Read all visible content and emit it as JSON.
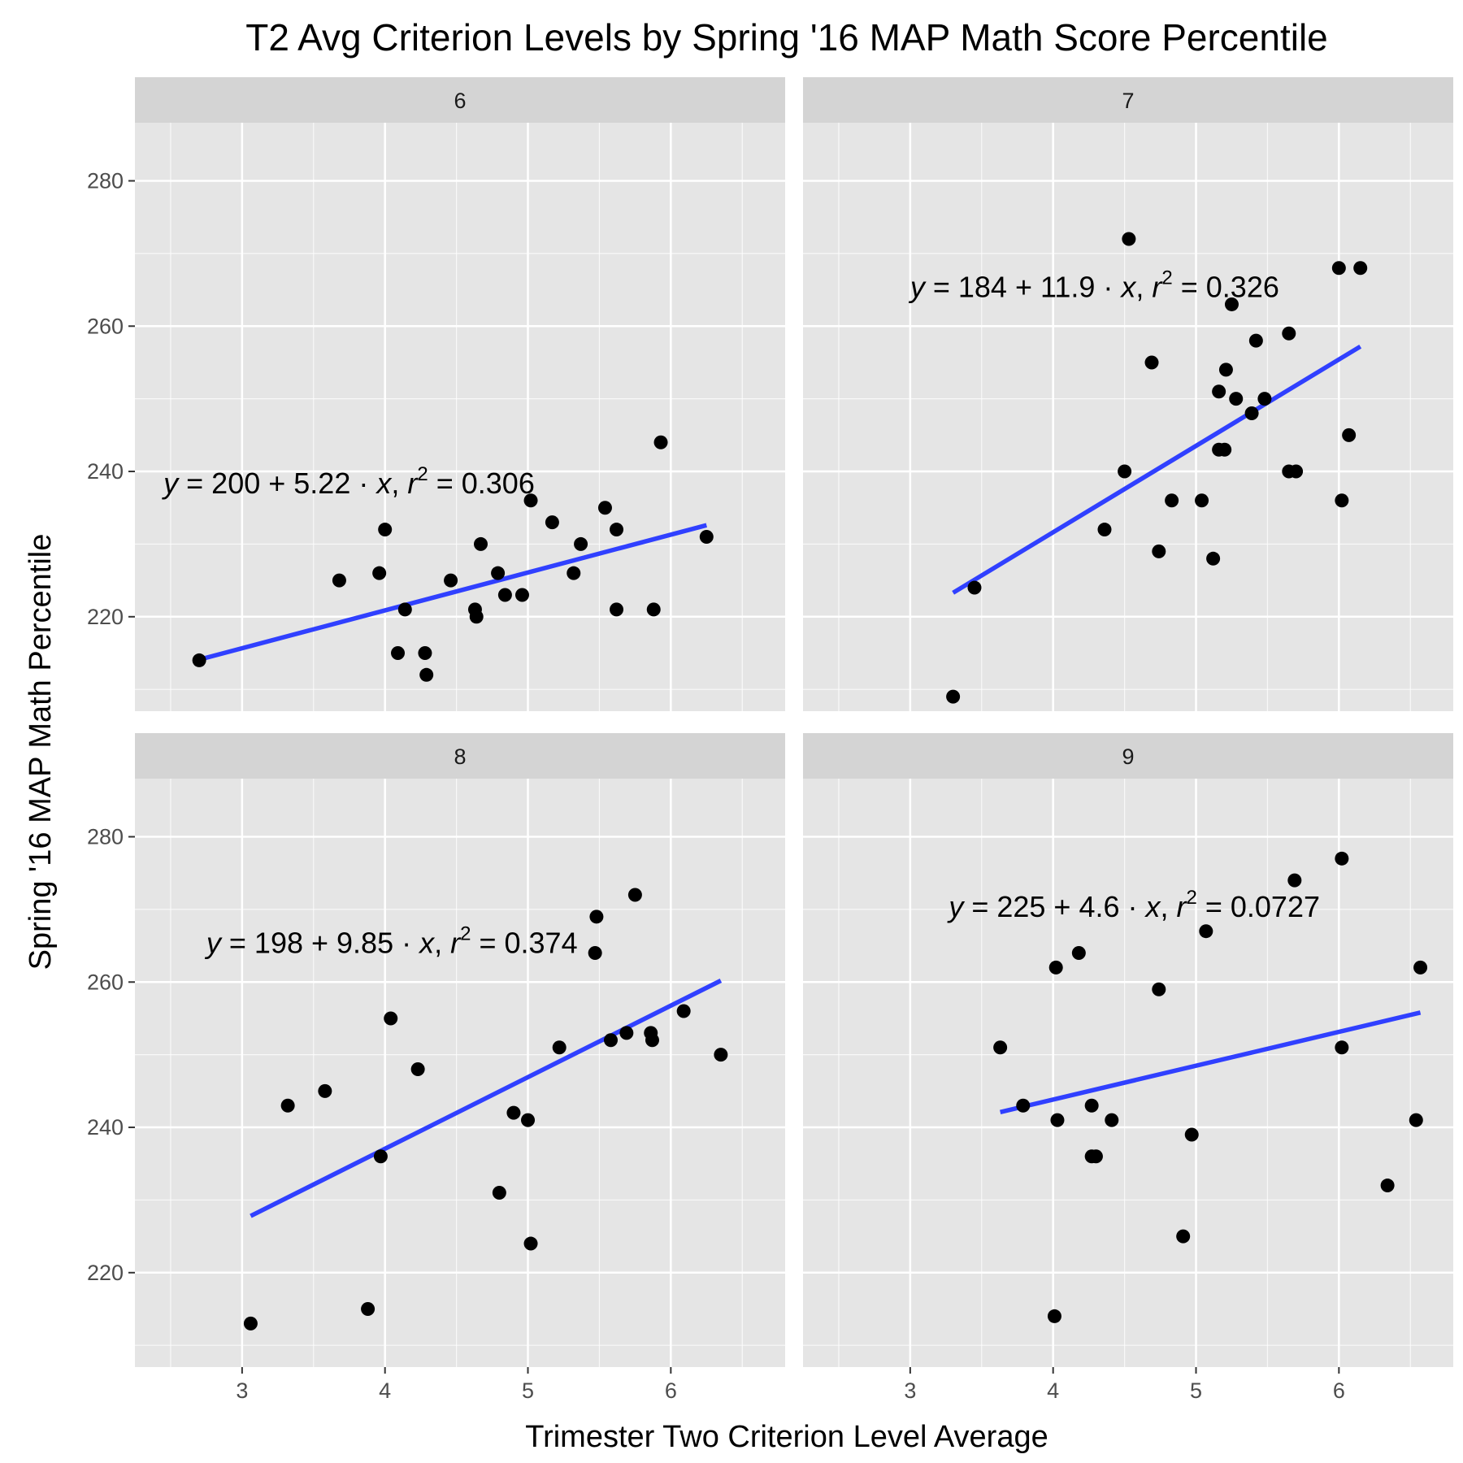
{
  "chart_data": {
    "type": "scatter",
    "title": "T2 Avg Criterion Levels by Spring '16 MAP Math Score Percentile",
    "xlabel": "Trimester Two Criterion Level Average",
    "ylabel": "Spring '16 MAP Math Percentile",
    "xlim": [
      2.25,
      6.8
    ],
    "ylim": [
      207,
      288
    ],
    "x_ticks": [
      3,
      4,
      5,
      6
    ],
    "y_ticks": [
      220,
      240,
      260,
      280
    ],
    "grid": true,
    "facet_layout": "2x2",
    "colors": {
      "points": "#000000",
      "fit_line": "#3040ff",
      "panel_bg": "#e5e5e5",
      "strip_bg": "#d4d4d4",
      "grid": "#ffffff"
    },
    "panels": [
      {
        "label": "6",
        "equation": {
          "intercept": "200",
          "slope": "5.22",
          "r2": "0.306"
        },
        "fit": {
          "x": [
            2.7,
            6.25
          ],
          "y": [
            214.1,
            232.6
          ]
        },
        "points": [
          {
            "x": 2.7,
            "y": 214
          },
          {
            "x": 3.68,
            "y": 225
          },
          {
            "x": 3.96,
            "y": 226
          },
          {
            "x": 4.0,
            "y": 232
          },
          {
            "x": 4.09,
            "y": 215
          },
          {
            "x": 4.14,
            "y": 221
          },
          {
            "x": 4.28,
            "y": 215
          },
          {
            "x": 4.29,
            "y": 212
          },
          {
            "x": 4.46,
            "y": 225
          },
          {
            "x": 4.63,
            "y": 221
          },
          {
            "x": 4.64,
            "y": 220
          },
          {
            "x": 4.67,
            "y": 230
          },
          {
            "x": 4.79,
            "y": 226
          },
          {
            "x": 4.84,
            "y": 223
          },
          {
            "x": 4.96,
            "y": 223
          },
          {
            "x": 5.02,
            "y": 236
          },
          {
            "x": 5.17,
            "y": 233
          },
          {
            "x": 5.32,
            "y": 226
          },
          {
            "x": 5.37,
            "y": 230
          },
          {
            "x": 5.54,
            "y": 235
          },
          {
            "x": 5.62,
            "y": 221
          },
          {
            "x": 5.62,
            "y": 232
          },
          {
            "x": 5.88,
            "y": 221
          },
          {
            "x": 5.93,
            "y": 244
          },
          {
            "x": 6.25,
            "y": 231
          }
        ]
      },
      {
        "label": "7",
        "equation": {
          "intercept": "184",
          "slope": "11.9",
          "r2": "0.326"
        },
        "fit": {
          "x": [
            3.3,
            6.15
          ],
          "y": [
            223.3,
            257.2
          ]
        },
        "points": [
          {
            "x": 3.3,
            "y": 209
          },
          {
            "x": 3.45,
            "y": 224
          },
          {
            "x": 4.36,
            "y": 232
          },
          {
            "x": 4.5,
            "y": 240
          },
          {
            "x": 4.53,
            "y": 272
          },
          {
            "x": 4.69,
            "y": 255
          },
          {
            "x": 4.74,
            "y": 229
          },
          {
            "x": 4.83,
            "y": 236
          },
          {
            "x": 5.04,
            "y": 236
          },
          {
            "x": 5.12,
            "y": 228
          },
          {
            "x": 5.16,
            "y": 251
          },
          {
            "x": 5.16,
            "y": 243
          },
          {
            "x": 5.2,
            "y": 243
          },
          {
            "x": 5.21,
            "y": 254
          },
          {
            "x": 5.25,
            "y": 263
          },
          {
            "x": 5.28,
            "y": 250
          },
          {
            "x": 5.39,
            "y": 248
          },
          {
            "x": 5.42,
            "y": 258
          },
          {
            "x": 5.48,
            "y": 250
          },
          {
            "x": 5.65,
            "y": 259
          },
          {
            "x": 5.65,
            "y": 240
          },
          {
            "x": 5.7,
            "y": 240
          },
          {
            "x": 6.0,
            "y": 268
          },
          {
            "x": 6.02,
            "y": 236
          },
          {
            "x": 6.07,
            "y": 245
          },
          {
            "x": 6.15,
            "y": 268
          }
        ]
      },
      {
        "label": "8",
        "equation": {
          "intercept": "198",
          "slope": "9.85",
          "r2": "0.374"
        },
        "fit": {
          "x": [
            3.06,
            6.35
          ],
          "y": [
            227.8,
            260.2
          ]
        },
        "points": [
          {
            "x": 3.06,
            "y": 213
          },
          {
            "x": 3.32,
            "y": 243
          },
          {
            "x": 3.58,
            "y": 245
          },
          {
            "x": 3.88,
            "y": 215
          },
          {
            "x": 3.97,
            "y": 236
          },
          {
            "x": 4.04,
            "y": 255
          },
          {
            "x": 4.23,
            "y": 248
          },
          {
            "x": 4.8,
            "y": 231
          },
          {
            "x": 4.9,
            "y": 242
          },
          {
            "x": 5.0,
            "y": 241
          },
          {
            "x": 5.02,
            "y": 224
          },
          {
            "x": 5.22,
            "y": 251
          },
          {
            "x": 5.47,
            "y": 264
          },
          {
            "x": 5.48,
            "y": 269
          },
          {
            "x": 5.58,
            "y": 252
          },
          {
            "x": 5.69,
            "y": 253
          },
          {
            "x": 5.75,
            "y": 272
          },
          {
            "x": 5.86,
            "y": 253
          },
          {
            "x": 5.87,
            "y": 252
          },
          {
            "x": 6.09,
            "y": 256
          },
          {
            "x": 6.35,
            "y": 250
          }
        ]
      },
      {
        "label": "9",
        "equation": {
          "intercept": "225",
          "slope": "4.6",
          "r2": "0.0727"
        },
        "fit": {
          "x": [
            3.63,
            6.57
          ],
          "y": [
            242.1,
            255.8
          ]
        },
        "points": [
          {
            "x": 3.63,
            "y": 251
          },
          {
            "x": 3.79,
            "y": 243
          },
          {
            "x": 4.01,
            "y": 214
          },
          {
            "x": 4.02,
            "y": 262
          },
          {
            "x": 4.03,
            "y": 241
          },
          {
            "x": 4.18,
            "y": 264
          },
          {
            "x": 4.27,
            "y": 243
          },
          {
            "x": 4.27,
            "y": 236
          },
          {
            "x": 4.3,
            "y": 236
          },
          {
            "x": 4.41,
            "y": 241
          },
          {
            "x": 4.74,
            "y": 259
          },
          {
            "x": 4.91,
            "y": 225
          },
          {
            "x": 4.97,
            "y": 239
          },
          {
            "x": 5.07,
            "y": 267
          },
          {
            "x": 5.69,
            "y": 274
          },
          {
            "x": 6.02,
            "y": 251
          },
          {
            "x": 6.02,
            "y": 277
          },
          {
            "x": 6.34,
            "y": 232
          },
          {
            "x": 6.54,
            "y": 241
          },
          {
            "x": 6.57,
            "y": 262
          }
        ]
      }
    ]
  }
}
